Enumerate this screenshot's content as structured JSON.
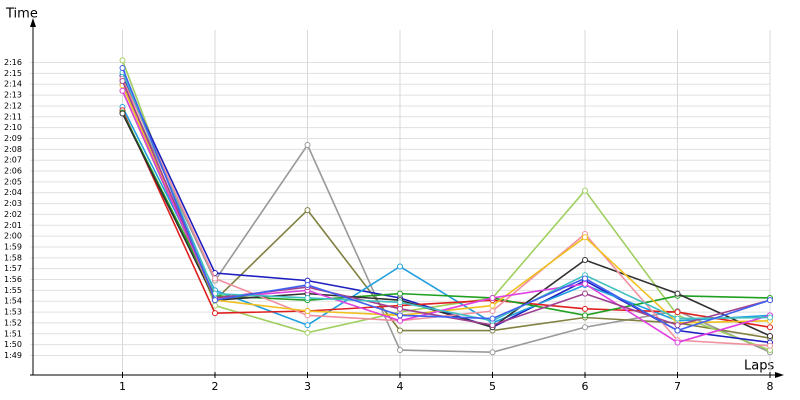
{
  "chart_data": {
    "type": "line",
    "y_label": "Time",
    "x_label": "Laps",
    "x": [
      1,
      2,
      3,
      4,
      5,
      6,
      7,
      8
    ],
    "xlim": [
      0,
      8
    ],
    "xticks": [
      1,
      2,
      3,
      4,
      5,
      6,
      7,
      8
    ],
    "ylim": [
      107.2,
      139
    ],
    "yticks": [
      {
        "value": 109,
        "label": "1:49"
      },
      {
        "value": 110,
        "label": "1:50"
      },
      {
        "value": 111,
        "label": "1:51"
      },
      {
        "value": 112,
        "label": "1:52"
      },
      {
        "value": 113,
        "label": "1:53"
      },
      {
        "value": 114,
        "label": "1:54"
      },
      {
        "value": 115,
        "label": "1:55"
      },
      {
        "value": 116,
        "label": "1:56"
      },
      {
        "value": 117,
        "label": "1:57"
      },
      {
        "value": 118,
        "label": "1:58"
      },
      {
        "value": 119,
        "label": "1:59"
      },
      {
        "value": 120,
        "label": "2:00"
      },
      {
        "value": 121,
        "label": "2:01"
      },
      {
        "value": 122,
        "label": "2:02"
      },
      {
        "value": 123,
        "label": "2:03"
      },
      {
        "value": 124,
        "label": "2:04"
      },
      {
        "value": 125,
        "label": "2:05"
      },
      {
        "value": 126,
        "label": "2:06"
      },
      {
        "value": 127,
        "label": "2:07"
      },
      {
        "value": 128,
        "label": "2:08"
      },
      {
        "value": 129,
        "label": "2:09"
      },
      {
        "value": 130,
        "label": "2:10"
      },
      {
        "value": 131,
        "label": "2:11"
      },
      {
        "value": 132,
        "label": "2:12"
      },
      {
        "value": 133,
        "label": "2:13"
      },
      {
        "value": 134,
        "label": "2:14"
      },
      {
        "value": 135,
        "label": "2:15"
      },
      {
        "value": 136,
        "label": "2:16"
      }
    ],
    "grid": true,
    "series": [
      {
        "color": "#999999",
        "values": [
          134,
          115.9,
          128.4,
          109.5,
          109.3,
          111.6,
          113.1,
          109.3
        ]
      },
      {
        "color": "#808040",
        "values": [
          133.4,
          114.1,
          122.4,
          111.3,
          111.3,
          112.5,
          112,
          110.6
        ]
      },
      {
        "color": "#a0d060",
        "values": [
          136.2,
          113.6,
          111.1,
          113,
          114.3,
          124.2,
          112.7,
          109.5
        ]
      },
      {
        "color": "#2020c0",
        "values": [
          134.8,
          116.6,
          115.9,
          114.3,
          111.6,
          115.9,
          111.3,
          110.2
        ]
      },
      {
        "color": "#20a0e0",
        "values": [
          131.9,
          115,
          111.8,
          117.2,
          112,
          115.5,
          112.2,
          112.7
        ]
      },
      {
        "color": "#e02020",
        "values": [
          131.6,
          112.9,
          113.1,
          113.6,
          114.1,
          113.3,
          113,
          111.6
        ]
      },
      {
        "color": "#20a020",
        "values": [
          131.4,
          114.5,
          114.1,
          114.7,
          114.3,
          112.7,
          114.5,
          114.3
        ]
      },
      {
        "color": "#303030",
        "values": [
          131.3,
          114.1,
          114.7,
          114.1,
          111.6,
          117.8,
          114.7,
          110.8
        ]
      },
      {
        "color": "#f090a0",
        "values": [
          134.5,
          116.1,
          112.7,
          112.2,
          113.1,
          120.2,
          110.4,
          109.9
        ]
      },
      {
        "color": "#f0c020",
        "values": [
          133.9,
          114.1,
          113.1,
          112.7,
          113.6,
          119.9,
          112,
          112.2
        ]
      },
      {
        "color": "#e040e0",
        "values": [
          133.4,
          114.3,
          115,
          112.2,
          114.3,
          115.6,
          110.2,
          112.7
        ]
      },
      {
        "color": "#a04090",
        "values": [
          134.3,
          114.3,
          115.3,
          113.3,
          111.8,
          114.7,
          111.8,
          114.1
        ]
      },
      {
        "color": "#40c0c0",
        "values": [
          135.1,
          114.7,
          114.3,
          113.9,
          112.2,
          116.4,
          112.4,
          112.5
        ]
      },
      {
        "color": "#4060f0",
        "values": [
          135.5,
          114.1,
          115.5,
          112.7,
          112.4,
          116.1,
          111.3,
          114.1
        ]
      }
    ]
  }
}
